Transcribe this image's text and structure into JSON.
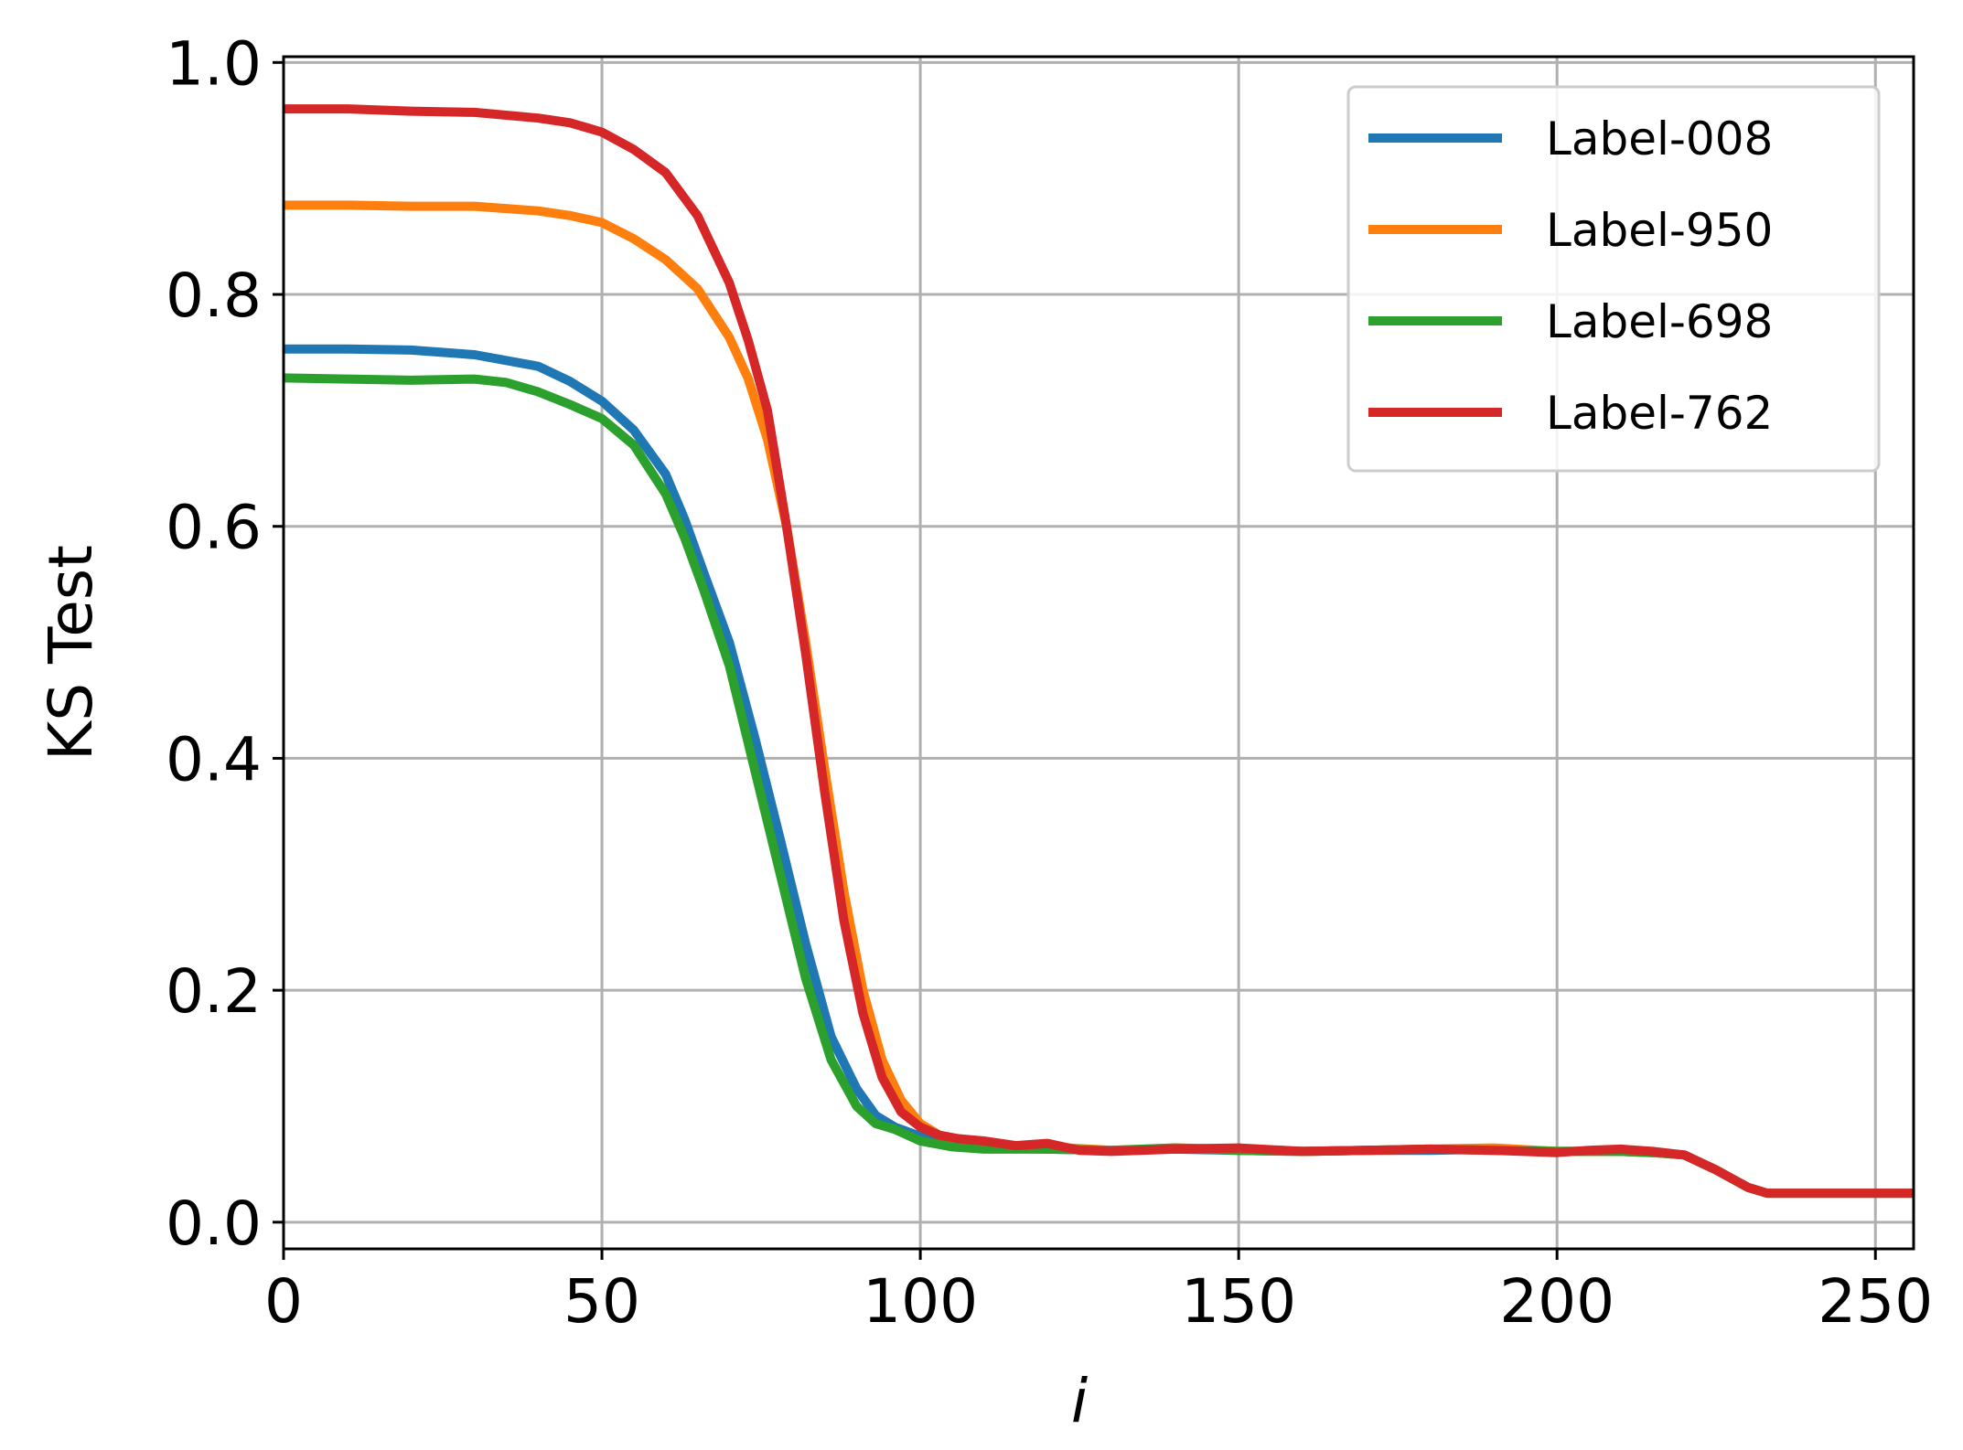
{
  "chart_data": {
    "type": "line",
    "title": "",
    "xlabel": "i",
    "ylabel": "KS Test",
    "xlim": [
      0,
      256
    ],
    "ylim": [
      -0.023,
      1.005
    ],
    "x_ticks": [
      0,
      50,
      100,
      150,
      200,
      250
    ],
    "x_tick_labels": [
      "0",
      "50",
      "100",
      "150",
      "200",
      "250"
    ],
    "y_ticks": [
      0.0,
      0.2,
      0.4,
      0.6,
      0.8,
      1.0
    ],
    "y_tick_labels": [
      "0.0",
      "0.2",
      "0.4",
      "0.6",
      "0.8",
      "1.0"
    ],
    "grid": true,
    "legend_position": "top-right",
    "series": [
      {
        "name": "Label-008",
        "color": "#1f77b4",
        "x": [
          0,
          10,
          20,
          30,
          40,
          45,
          50,
          55,
          60,
          63,
          66,
          70,
          74,
          78,
          82,
          86,
          90,
          93,
          96,
          100,
          105,
          110,
          120,
          130,
          140,
          150,
          160,
          170,
          180,
          190,
          200,
          210,
          215,
          220,
          225,
          230,
          233,
          240,
          250,
          256
        ],
        "y": [
          0.753,
          0.753,
          0.752,
          0.748,
          0.738,
          0.725,
          0.708,
          0.683,
          0.645,
          0.606,
          0.56,
          0.5,
          0.418,
          0.33,
          0.24,
          0.16,
          0.115,
          0.092,
          0.082,
          0.074,
          0.068,
          0.064,
          0.063,
          0.062,
          0.063,
          0.062,
          0.061,
          0.062,
          0.062,
          0.063,
          0.061,
          0.061,
          0.06,
          0.058,
          0.045,
          0.03,
          0.025,
          0.025,
          0.025,
          0.025
        ]
      },
      {
        "name": "Label-950",
        "color": "#ff7f0e",
        "x": [
          0,
          10,
          20,
          30,
          40,
          45,
          50,
          55,
          60,
          65,
          70,
          73,
          76,
          79,
          82,
          85,
          88,
          91,
          94,
          97,
          100,
          103,
          106,
          110,
          120,
          130,
          140,
          150,
          160,
          170,
          180,
          190,
          200,
          210,
          215,
          220,
          225,
          230,
          233,
          240,
          250,
          256
        ],
        "y": [
          0.877,
          0.877,
          0.876,
          0.876,
          0.872,
          0.868,
          0.862,
          0.848,
          0.83,
          0.805,
          0.763,
          0.727,
          0.675,
          0.6,
          0.5,
          0.39,
          0.285,
          0.2,
          0.14,
          0.105,
          0.085,
          0.075,
          0.07,
          0.067,
          0.065,
          0.062,
          0.064,
          0.063,
          0.061,
          0.062,
          0.063,
          0.064,
          0.061,
          0.061,
          0.06,
          0.058,
          0.045,
          0.03,
          0.025,
          0.025,
          0.025,
          0.025
        ]
      },
      {
        "name": "Label-698",
        "color": "#2ca02c",
        "x": [
          0,
          10,
          20,
          30,
          35,
          40,
          45,
          50,
          55,
          60,
          63,
          66,
          70,
          74,
          78,
          82,
          86,
          90,
          93,
          96,
          100,
          105,
          110,
          120,
          130,
          140,
          150,
          160,
          170,
          180,
          190,
          200,
          210,
          215,
          220,
          225,
          230,
          233,
          240,
          250,
          256
        ],
        "y": [
          0.728,
          0.727,
          0.726,
          0.727,
          0.724,
          0.716,
          0.705,
          0.693,
          0.67,
          0.628,
          0.59,
          0.545,
          0.48,
          0.39,
          0.3,
          0.21,
          0.14,
          0.1,
          0.085,
          0.08,
          0.07,
          0.065,
          0.063,
          0.063,
          0.062,
          0.064,
          0.062,
          0.061,
          0.062,
          0.063,
          0.062,
          0.061,
          0.061,
          0.06,
          0.058,
          0.045,
          0.03,
          0.025,
          0.025,
          0.025,
          0.025
        ]
      },
      {
        "name": "Label-762",
        "color": "#d62728",
        "x": [
          0,
          10,
          20,
          30,
          40,
          45,
          50,
          55,
          60,
          65,
          70,
          73,
          76,
          79,
          82,
          85,
          88,
          91,
          94,
          97,
          100,
          103,
          106,
          110,
          115,
          120,
          125,
          130,
          140,
          150,
          160,
          170,
          180,
          190,
          200,
          205,
          210,
          215,
          220,
          225,
          230,
          233,
          240,
          250,
          256
        ],
        "y": [
          0.96,
          0.96,
          0.958,
          0.957,
          0.952,
          0.948,
          0.94,
          0.925,
          0.905,
          0.868,
          0.81,
          0.76,
          0.7,
          0.6,
          0.49,
          0.37,
          0.26,
          0.18,
          0.125,
          0.095,
          0.082,
          0.075,
          0.072,
          0.07,
          0.066,
          0.068,
          0.062,
          0.061,
          0.063,
          0.064,
          0.061,
          0.062,
          0.063,
          0.062,
          0.06,
          0.062,
          0.063,
          0.061,
          0.058,
          0.045,
          0.03,
          0.025,
          0.025,
          0.025,
          0.025
        ]
      }
    ]
  }
}
